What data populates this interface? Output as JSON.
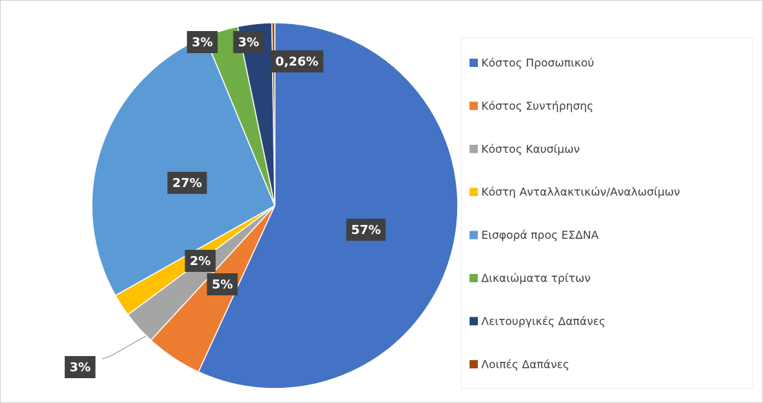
{
  "chart_data": {
    "type": "pie",
    "categories": [
      "Κόστος Προσωπικού",
      "Κόστος Συντήρησης",
      "Κόστος Καυσίμων",
      "Κόστη Ανταλλακτικών/Αναλωσίμων",
      "Εισφορά προς ΕΣΔΝΑ",
      "Δικαιώματα τρίτων",
      "Λειτουργικές Δαπάνες",
      "Λοιπές Δαπάνες"
    ],
    "values": [
      57,
      5,
      3,
      2,
      27,
      3,
      3,
      0.26
    ],
    "value_labels": [
      "57%",
      "5%",
      "3%",
      "2%",
      "27%",
      "3%",
      "3%",
      "0,26%"
    ],
    "colors": [
      "#4472c4",
      "#ed7d31",
      "#a5a5a5",
      "#ffc000",
      "#5b9bd5",
      "#70ad47",
      "#264478",
      "#9e480e"
    ],
    "legend": "right"
  }
}
